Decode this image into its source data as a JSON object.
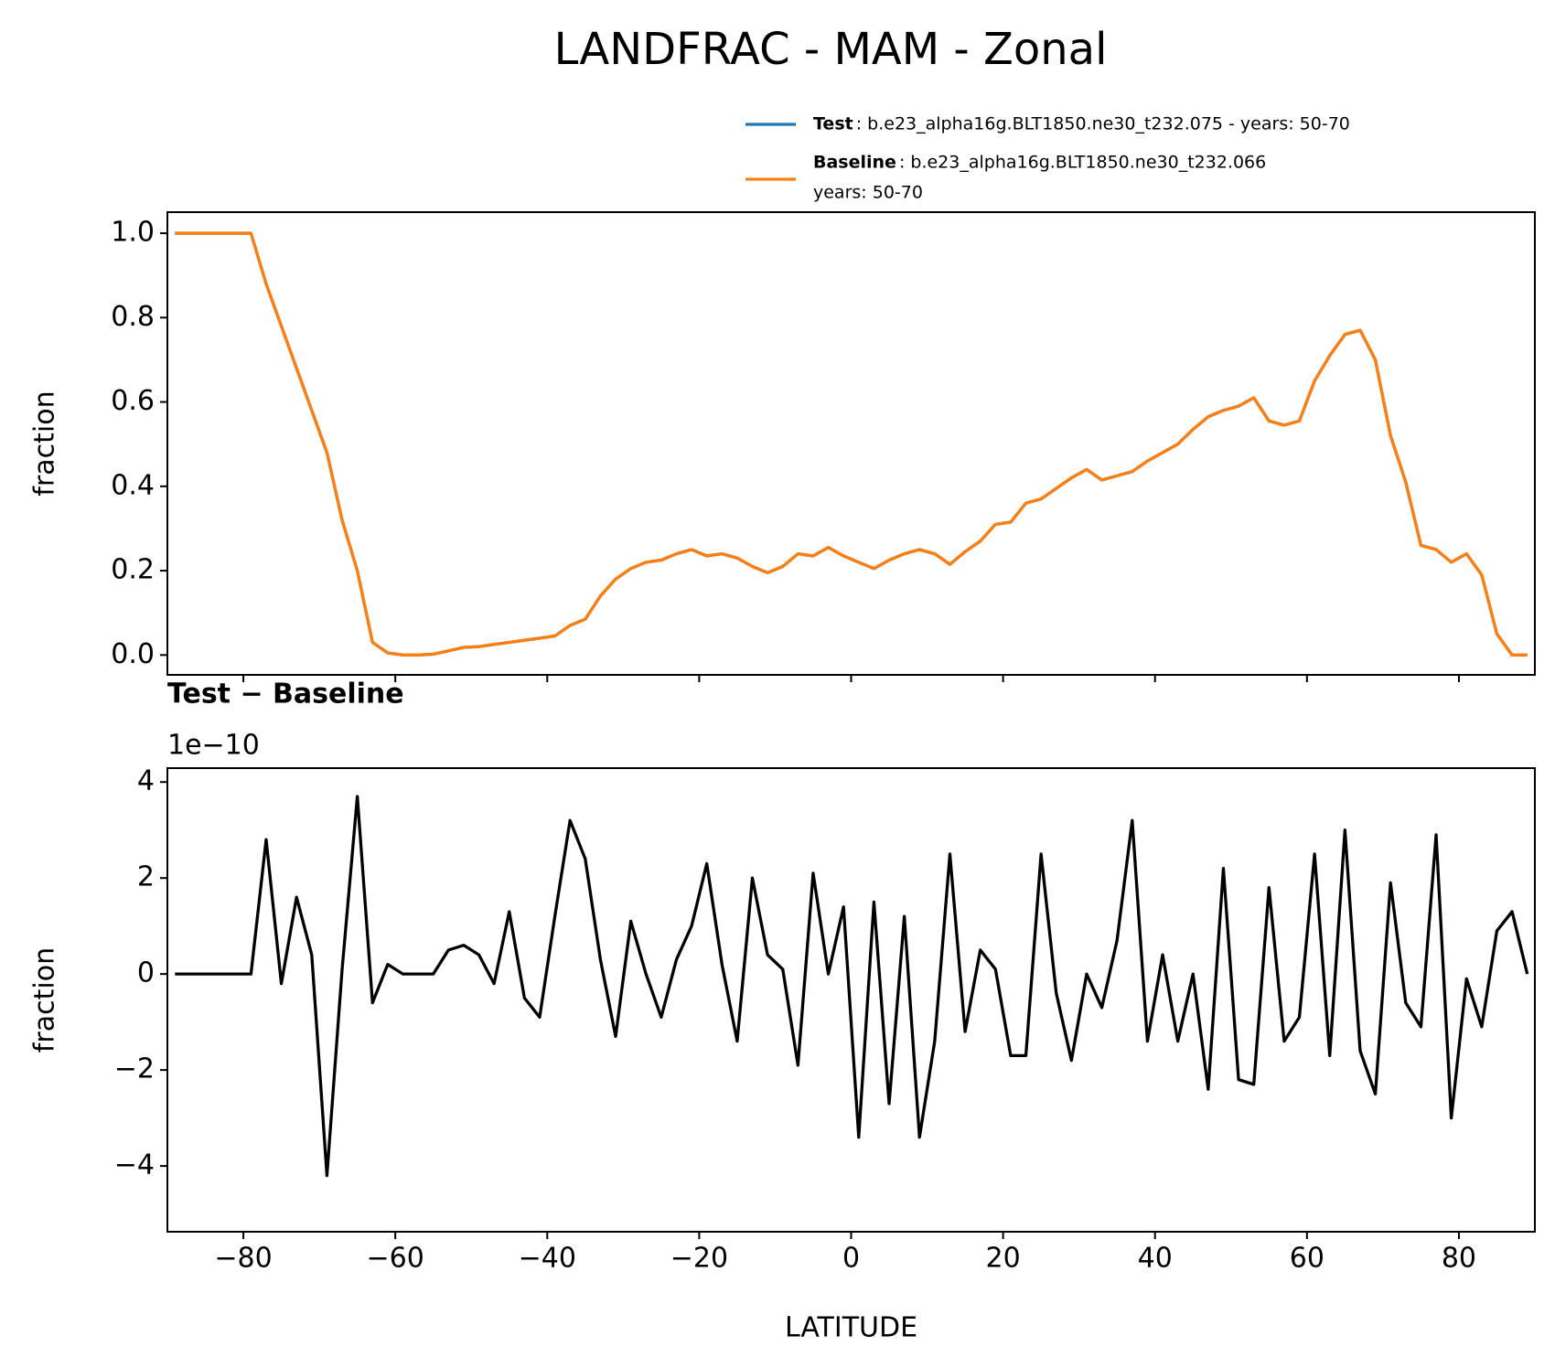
{
  "title": "LANDFRAC - MAM - Zonal",
  "chart_data": [
    {
      "type": "line",
      "ylabel": "fraction",
      "x": [
        -89,
        -87,
        -85,
        -83,
        -81,
        -79,
        -77,
        -75,
        -73,
        -71,
        -69,
        -67,
        -65,
        -63,
        -61,
        -59,
        -57,
        -55,
        -53,
        -51,
        -49,
        -47,
        -45,
        -43,
        -41,
        -39,
        -37,
        -35,
        -33,
        -31,
        -29,
        -27,
        -25,
        -23,
        -21,
        -19,
        -17,
        -15,
        -13,
        -11,
        -9,
        -7,
        -5,
        -3,
        -1,
        1,
        3,
        5,
        7,
        9,
        11,
        13,
        15,
        17,
        19,
        21,
        23,
        25,
        27,
        29,
        31,
        33,
        35,
        37,
        39,
        41,
        43,
        45,
        47,
        49,
        51,
        53,
        55,
        57,
        59,
        61,
        63,
        65,
        67,
        69,
        71,
        73,
        75,
        77,
        79,
        81,
        83,
        85,
        87,
        89
      ],
      "series": [
        {
          "name": "Test",
          "detail_lines": [
            ": b.e23_alpha16g.BLT1850.ne30_t232.075 - years: 50-70"
          ],
          "color": "#1f77b4",
          "values": [
            1.0,
            1.0,
            1.0,
            1.0,
            1.0,
            1.0,
            0.88,
            0.78,
            0.68,
            0.58,
            0.48,
            0.32,
            0.2,
            0.03,
            0.005,
            0.0,
            0.0,
            0.002,
            0.01,
            0.018,
            0.02,
            0.025,
            0.03,
            0.035,
            0.04,
            0.045,
            0.07,
            0.085,
            0.14,
            0.18,
            0.205,
            0.22,
            0.225,
            0.24,
            0.25,
            0.235,
            0.24,
            0.23,
            0.21,
            0.195,
            0.21,
            0.24,
            0.235,
            0.255,
            0.235,
            0.22,
            0.205,
            0.225,
            0.24,
            0.25,
            0.24,
            0.215,
            0.245,
            0.27,
            0.31,
            0.315,
            0.36,
            0.37,
            0.395,
            0.42,
            0.44,
            0.415,
            0.425,
            0.435,
            0.46,
            0.48,
            0.5,
            0.535,
            0.565,
            0.58,
            0.59,
            0.61,
            0.555,
            0.545,
            0.555,
            0.65,
            0.71,
            0.76,
            0.77,
            0.7,
            0.52,
            0.41,
            0.26,
            0.25,
            0.22,
            0.24,
            0.19,
            0.05,
            0.0,
            0.0
          ]
        },
        {
          "name": "Baseline",
          "detail_lines": [
            ": b.e23_alpha16g.BLT1850.ne30_t232.066",
            "years: 50-70"
          ],
          "color": "#ff7f0e",
          "values": [
            1.0,
            1.0,
            1.0,
            1.0,
            1.0,
            1.0,
            0.88,
            0.78,
            0.68,
            0.58,
            0.48,
            0.32,
            0.2,
            0.03,
            0.005,
            0.0,
            0.0,
            0.002,
            0.01,
            0.018,
            0.02,
            0.025,
            0.03,
            0.035,
            0.04,
            0.045,
            0.07,
            0.085,
            0.14,
            0.18,
            0.205,
            0.22,
            0.225,
            0.24,
            0.25,
            0.235,
            0.24,
            0.23,
            0.21,
            0.195,
            0.21,
            0.24,
            0.235,
            0.255,
            0.235,
            0.22,
            0.205,
            0.225,
            0.24,
            0.25,
            0.24,
            0.215,
            0.245,
            0.27,
            0.31,
            0.315,
            0.36,
            0.37,
            0.395,
            0.42,
            0.44,
            0.415,
            0.425,
            0.435,
            0.46,
            0.48,
            0.5,
            0.535,
            0.565,
            0.58,
            0.59,
            0.61,
            0.555,
            0.545,
            0.555,
            0.65,
            0.71,
            0.76,
            0.77,
            0.7,
            0.52,
            0.41,
            0.26,
            0.25,
            0.22,
            0.24,
            0.19,
            0.05,
            0.0,
            0.0
          ]
        }
      ],
      "xlim": [
        -90,
        90
      ],
      "xticks": [
        -80,
        -60,
        -40,
        -20,
        0,
        20,
        40,
        60,
        80
      ],
      "ylim": [
        -0.047,
        1.05
      ],
      "yticks": [
        {
          "value": 0,
          "label": "0.0"
        },
        0.2,
        0.4,
        0.6,
        0.8,
        {
          "value": 1,
          "label": "1.0"
        }
      ],
      "legend": "upper right"
    },
    {
      "type": "line",
      "title": "Test − Baseline",
      "offset_label": "1e−10",
      "ylabel": "fraction",
      "xlabel": "LATITUDE",
      "x": [
        -89,
        -87,
        -85,
        -83,
        -81,
        -79,
        -77,
        -75,
        -73,
        -71,
        -69,
        -67,
        -65,
        -63,
        -61,
        -59,
        -57,
        -55,
        -53,
        -51,
        -49,
        -47,
        -45,
        -43,
        -41,
        -39,
        -37,
        -35,
        -33,
        -31,
        -29,
        -27,
        -25,
        -23,
        -21,
        -19,
        -17,
        -15,
        -13,
        -11,
        -9,
        -7,
        -5,
        -3,
        -1,
        1,
        3,
        5,
        7,
        9,
        11,
        13,
        15,
        17,
        19,
        21,
        23,
        25,
        27,
        29,
        31,
        33,
        35,
        37,
        39,
        41,
        43,
        45,
        47,
        49,
        51,
        53,
        55,
        57,
        59,
        61,
        63,
        65,
        67,
        69,
        71,
        73,
        75,
        77,
        79,
        81,
        83,
        85,
        87,
        89
      ],
      "color": "#000000",
      "values": [
        0,
        0,
        0,
        0,
        0,
        0,
        2.8,
        -0.2,
        1.6,
        0.4,
        -4.2,
        0.1,
        3.7,
        -0.6,
        0.2,
        0,
        0,
        0,
        0.5,
        0.6,
        0.4,
        -0.2,
        1.3,
        -0.5,
        -0.9,
        1.2,
        3.2,
        2.4,
        0.3,
        -1.3,
        1.1,
        0,
        -0.9,
        0.3,
        1.0,
        2.3,
        0.2,
        -1.4,
        2.0,
        0.4,
        0.1,
        -1.9,
        2.1,
        0.0,
        1.4,
        -3.4,
        1.5,
        -2.7,
        1.2,
        -3.4,
        -1.4,
        2.5,
        -1.2,
        0.5,
        0.1,
        -1.7,
        -1.7,
        2.5,
        -0.4,
        -1.8,
        0.0,
        -0.7,
        0.7,
        3.2,
        -1.4,
        0.4,
        -1.4,
        0.0,
        -2.4,
        2.2,
        -2.2,
        -2.3,
        1.8,
        -1.4,
        -0.9,
        2.5,
        -1.7,
        3.0,
        -1.6,
        -2.5,
        1.9,
        -0.6,
        -1.1,
        2.9,
        -3.0,
        -0.1,
        -1.1,
        0.9,
        1.3,
        0
      ],
      "xlim": [
        -90,
        90
      ],
      "xticks": [
        {
          "value": -80,
          "label": "−80"
        },
        {
          "value": -60,
          "label": "−60"
        },
        {
          "value": -40,
          "label": "−40"
        },
        {
          "value": -20,
          "label": "−20"
        },
        0,
        20,
        40,
        60,
        80
      ],
      "ylim": [
        -5.37,
        4.29
      ],
      "yticks": [
        {
          "value": -4,
          "label": "−4"
        },
        {
          "value": -2,
          "label": "−2"
        },
        0,
        2,
        4
      ]
    }
  ]
}
